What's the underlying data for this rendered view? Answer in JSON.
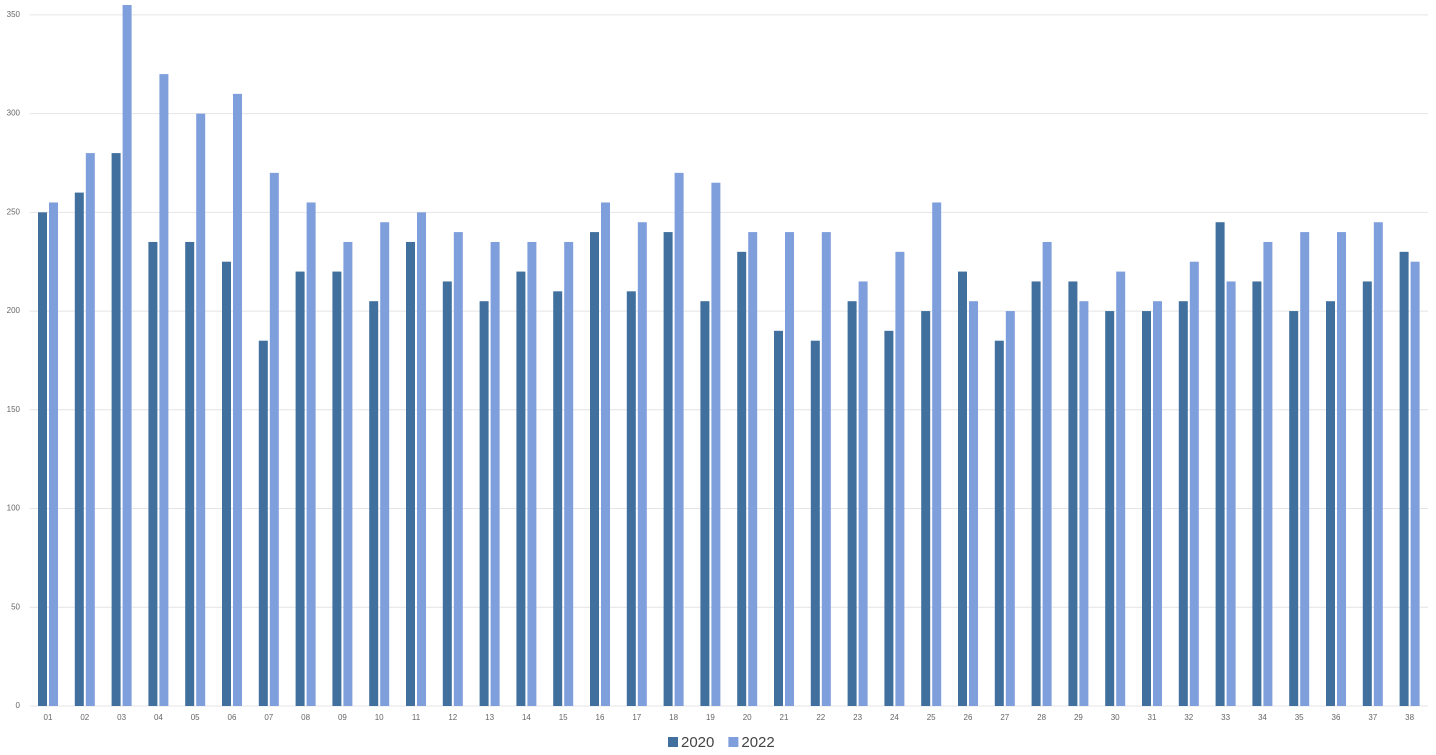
{
  "chart_data": {
    "type": "bar",
    "categories": [
      "01",
      "02",
      "03",
      "04",
      "05",
      "06",
      "07",
      "08",
      "09",
      "10",
      "11",
      "12",
      "13",
      "14",
      "15",
      "16",
      "17",
      "18",
      "19",
      "20",
      "21",
      "22",
      "23",
      "24",
      "25",
      "26",
      "27",
      "28",
      "29",
      "30",
      "31",
      "32",
      "33",
      "34",
      "35",
      "36",
      "37",
      "38"
    ],
    "series": [
      {
        "name": "2020",
        "color": "#41709f",
        "values": [
          250,
          260,
          280,
          235,
          235,
          225,
          185,
          220,
          220,
          205,
          235,
          215,
          205,
          220,
          210,
          240,
          210,
          240,
          205,
          230,
          190,
          185,
          205,
          190,
          200,
          220,
          185,
          215,
          215,
          200,
          200,
          205,
          245,
          215,
          200,
          205,
          215,
          230
        ]
      },
      {
        "name": "2022",
        "color": "#7f9fdc",
        "values": [
          255,
          280,
          355,
          320,
          300,
          310,
          270,
          255,
          235,
          245,
          250,
          240,
          235,
          235,
          235,
          255,
          245,
          270,
          265,
          240,
          240,
          240,
          215,
          230,
          255,
          205,
          200,
          235,
          205,
          220,
          205,
          225,
          215,
          235,
          240,
          240,
          245,
          225
        ]
      }
    ],
    "ylim": [
      0,
      355
    ],
    "yticks": [
      0,
      50,
      100,
      150,
      200,
      250,
      300,
      350
    ],
    "grid": true,
    "legend": "bottom"
  }
}
